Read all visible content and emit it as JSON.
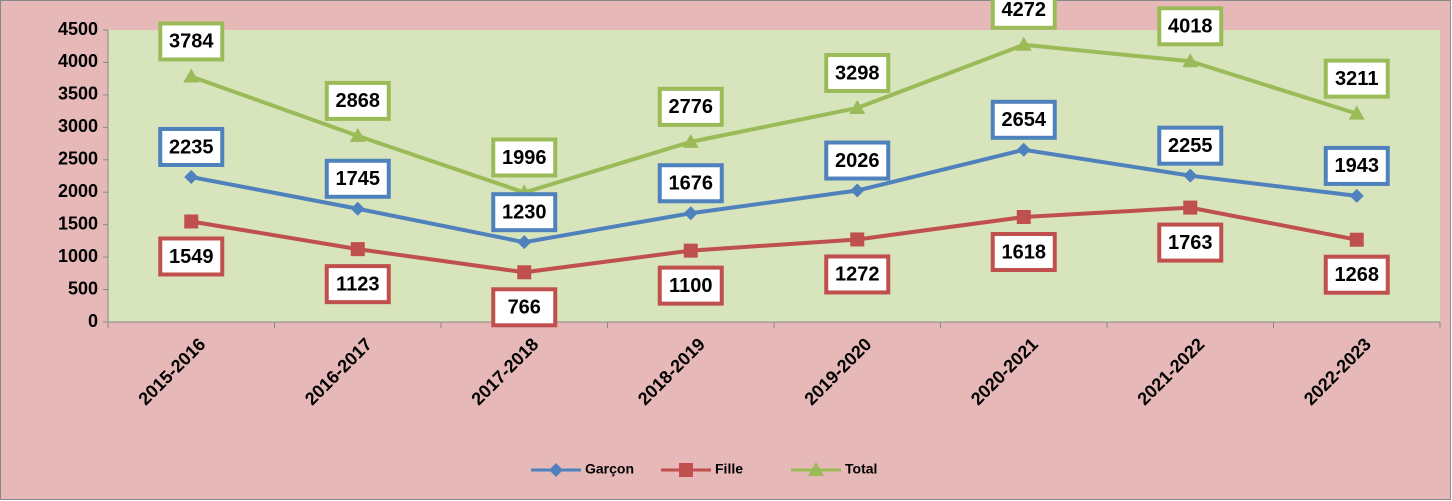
{
  "chart_data": {
    "type": "line",
    "categories": [
      "2015-2016",
      "2016-2017",
      "2017-2018",
      "2018-2019",
      "2019-2020",
      "2020-2021",
      "2021-2022",
      "2022-2023"
    ],
    "series": [
      {
        "name": "Garçon",
        "color": "#4f81bd",
        "marker": "diamond",
        "values": [
          2235,
          1745,
          1230,
          1676,
          2026,
          2654,
          2255,
          1943
        ]
      },
      {
        "name": "Fille",
        "color": "#c0504d",
        "marker": "square",
        "values": [
          1549,
          1123,
          766,
          1100,
          1272,
          1618,
          1763,
          1268
        ]
      },
      {
        "name": "Total",
        "color": "#9bbb59",
        "marker": "triangle",
        "values": [
          3784,
          2868,
          1996,
          2776,
          3298,
          4272,
          4018,
          3211
        ]
      }
    ],
    "ylim": [
      0,
      4500
    ],
    "yticks": [
      0,
      500,
      1000,
      1500,
      2000,
      2500,
      3000,
      3500,
      4000,
      4500
    ],
    "grid": false,
    "legend": "bottom"
  }
}
